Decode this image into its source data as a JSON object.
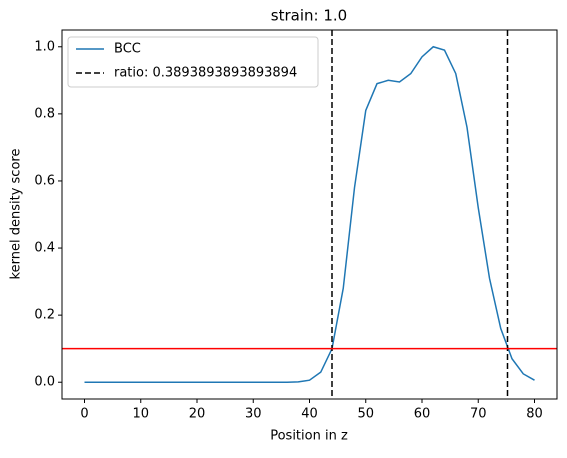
{
  "chart_data": {
    "type": "line",
    "title": "strain: 1.0",
    "x_label": "Position in z",
    "y_label": "kernel density score",
    "x": [
      0,
      2,
      4,
      6,
      8,
      10,
      12,
      14,
      16,
      18,
      20,
      22,
      24,
      26,
      28,
      30,
      32,
      34,
      36,
      38,
      40,
      42,
      44,
      46,
      48,
      50,
      52,
      54,
      56,
      58,
      60,
      62,
      64,
      66,
      68,
      70,
      72,
      74,
      76,
      78,
      80
    ],
    "series": [
      {
        "name": "BCC",
        "color": "#1f77b4",
        "values": [
          0,
          0,
          0,
          0,
          0,
          0,
          0,
          0,
          0,
          0,
          0,
          0,
          0,
          0,
          0,
          0,
          0,
          0,
          0,
          0.001,
          0.006,
          0.03,
          0.1,
          0.28,
          0.58,
          0.81,
          0.89,
          0.9,
          0.895,
          0.92,
          0.97,
          1.0,
          0.99,
          0.92,
          0.76,
          0.52,
          0.31,
          0.16,
          0.07,
          0.025,
          0.006
        ]
      }
    ],
    "vlines": {
      "name": "ratio: 0.3893893893893894",
      "color": "#000000",
      "values": [
        44,
        75.2
      ]
    },
    "hlines": {
      "color": "#ff0000",
      "values": [
        0.1
      ]
    },
    "xlim": [
      -4,
      84
    ],
    "ylim": [
      -0.05,
      1.05
    ],
    "xticks": [
      0,
      10,
      20,
      30,
      40,
      50,
      60,
      70,
      80
    ],
    "yticks": [
      {
        "value": 0,
        "label": "0.0"
      },
      0.2,
      0.4,
      0.6,
      0.8,
      {
        "value": 1,
        "label": "1.0"
      }
    ],
    "legend": "upper left"
  }
}
